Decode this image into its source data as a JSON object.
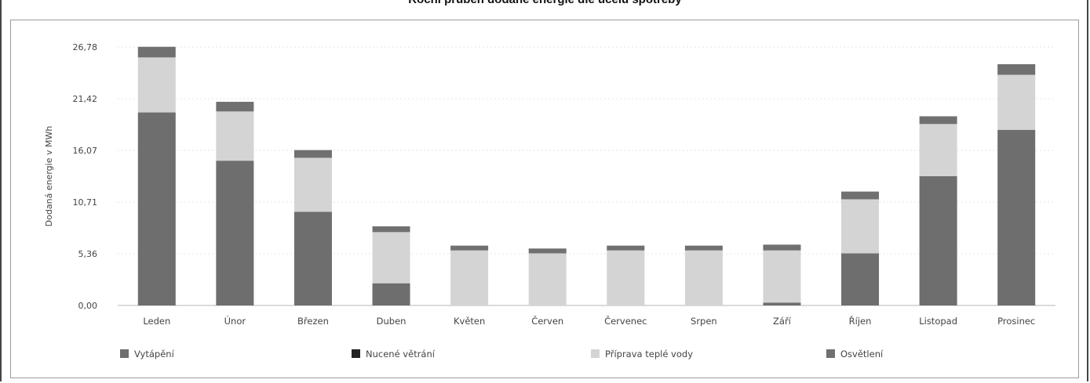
{
  "chart_data": {
    "type": "bar",
    "stacked": true,
    "title": "Roční průběh dodané energie dle účelu spotřeby",
    "ylabel": "Dodaná energie v MWh",
    "xlabel": "",
    "ylim": [
      0,
      26.78
    ],
    "yticks": [
      "0,00",
      "5,36",
      "10,71",
      "16,07",
      "21,42",
      "26,78"
    ],
    "ytick_values": [
      0,
      5.36,
      10.71,
      16.07,
      21.42,
      26.78
    ],
    "grid": true,
    "legend_position": "bottom",
    "categories": [
      "Leden",
      "Únor",
      "Březen",
      "Duben",
      "Květen",
      "Červen",
      "Červenec",
      "Srpen",
      "Září",
      "Říjen",
      "Listopad",
      "Prosinec"
    ],
    "series": [
      {
        "name": "Vytápění",
        "color": "#6e6e6e",
        "values": [
          20.0,
          15.0,
          9.7,
          2.3,
          0.0,
          0.0,
          0.0,
          0.0,
          0.3,
          5.4,
          13.4,
          18.2
        ]
      },
      {
        "name": "Nucené větrání",
        "color": "#222222",
        "values": [
          0.0,
          0.0,
          0.0,
          0.0,
          0.0,
          0.0,
          0.0,
          0.0,
          0.0,
          0.0,
          0.0,
          0.0
        ]
      },
      {
        "name": "Příprava teplé vody",
        "color": "#d4d4d4",
        "values": [
          5.7,
          5.1,
          5.6,
          5.3,
          5.7,
          5.4,
          5.7,
          5.7,
          5.4,
          5.6,
          5.4,
          5.7
        ]
      },
      {
        "name": "Osvětlení",
        "color": "#707070",
        "values": [
          1.1,
          1.0,
          0.8,
          0.6,
          0.5,
          0.5,
          0.5,
          0.5,
          0.6,
          0.8,
          0.8,
          1.1
        ]
      }
    ]
  }
}
